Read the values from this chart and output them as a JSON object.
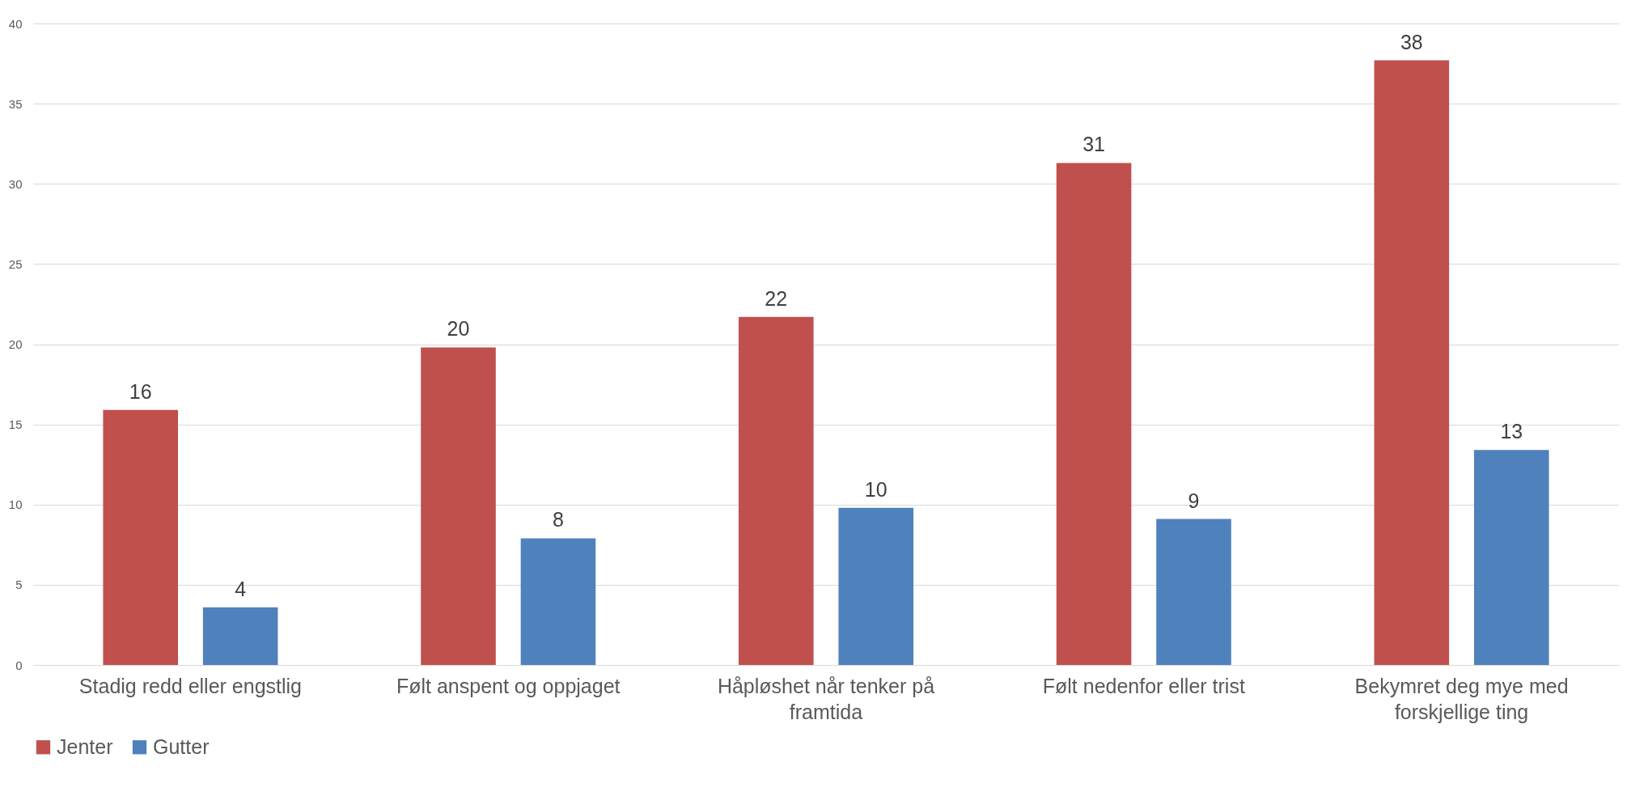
{
  "chart_data": {
    "type": "bar",
    "categories": [
      "Stadig redd eller engstlig",
      "Følt anspent og oppjaget",
      "Håpløshet når tenker på framtida",
      "Følt nedenfor eller trist",
      "Bekymret deg mye med forskjellige ting"
    ],
    "series": [
      {
        "name": "Jenter",
        "color": "#c0504d",
        "values": [
          15.9,
          19.8,
          21.7,
          31.3,
          37.7
        ],
        "value_labels": [
          "16",
          "20",
          "22",
          "31",
          "38"
        ]
      },
      {
        "name": "Gutter",
        "color": "#4f81bd",
        "values": [
          3.6,
          7.9,
          9.8,
          9.1,
          13.4
        ],
        "value_labels": [
          "4",
          "8",
          "10",
          "9",
          "13"
        ]
      }
    ],
    "ylim": [
      0,
      40
    ],
    "yticks": [
      0,
      5,
      10,
      15,
      20,
      25,
      30,
      35,
      40
    ],
    "grid": "y",
    "legend": "bottom"
  }
}
